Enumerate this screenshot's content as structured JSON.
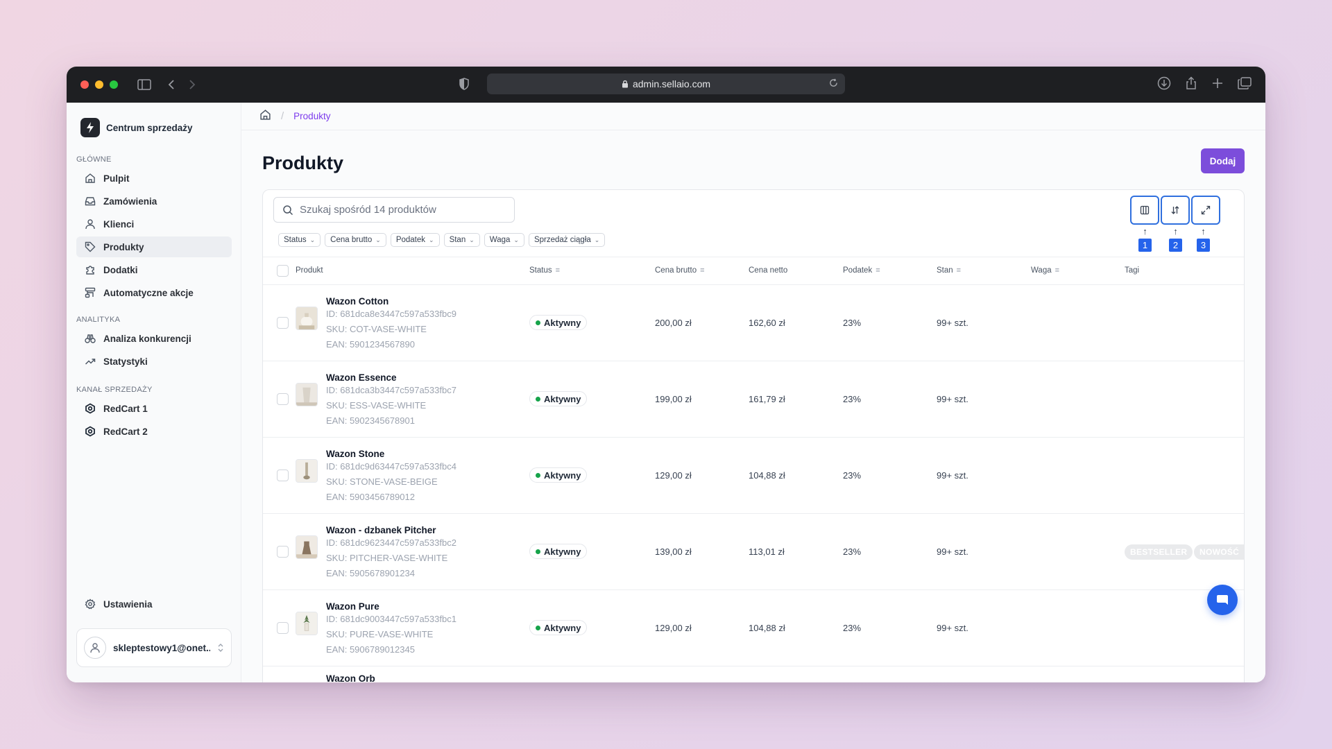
{
  "browser": {
    "url": "admin.sellaio.com",
    "traffic_colors": [
      "#ff5f57",
      "#febc2e",
      "#28c840"
    ]
  },
  "sidebar": {
    "brand": "Centrum sprzedaży",
    "sections": [
      {
        "label": "GŁÓWNE",
        "items": [
          {
            "label": "Pulpit",
            "icon": "home-icon"
          },
          {
            "label": "Zamówienia",
            "icon": "inbox-icon"
          },
          {
            "label": "Klienci",
            "icon": "user-icon"
          },
          {
            "label": "Produkty",
            "icon": "tag-icon",
            "active": true
          },
          {
            "label": "Dodatki",
            "icon": "puzzle-icon"
          },
          {
            "label": "Automatyczne akcje",
            "icon": "workflow-icon"
          }
        ]
      },
      {
        "label": "ANALITYKA",
        "items": [
          {
            "label": "Analiza konkurencji",
            "icon": "binoculars-icon"
          },
          {
            "label": "Statystyki",
            "icon": "trending-up-icon"
          }
        ]
      },
      {
        "label": "KANAŁ SPRZEDAŻY",
        "items": [
          {
            "label": "RedCart 1",
            "icon": "redcart-icon"
          },
          {
            "label": "RedCart 2",
            "icon": "redcart-icon"
          }
        ]
      }
    ],
    "settings_label": "Ustawienia",
    "user_email": "skleptestowy1@onet..."
  },
  "breadcrumb": {
    "current": "Produkty"
  },
  "page": {
    "title": "Produkty",
    "add_label": "Dodaj",
    "accent": "#7c4ddb"
  },
  "toolbar": {
    "search_placeholder": "Szukaj spośród 14 produktów",
    "filters": [
      "Status",
      "Cena brutto",
      "Podatek",
      "Stan",
      "Waga",
      "Sprzedaż ciągła"
    ],
    "annotations": [
      "1",
      "2",
      "3"
    ]
  },
  "table": {
    "headers": {
      "product": "Produkt",
      "status": "Status",
      "gross": "Cena brutto",
      "net": "Cena netto",
      "tax": "Podatek",
      "stock": "Stan",
      "weight": "Waga",
      "tags": "Tagi"
    },
    "rows": [
      {
        "name": "Wazon Cotton",
        "id": "ID: 681dca8e3447c597a533fbc9",
        "sku": "SKU: COT-VASE-WHITE",
        "ean": "EAN: 5901234567890",
        "status": "Aktywny",
        "gross": "200,00 zł",
        "net": "162,60 zł",
        "tax": "23%",
        "stock": "99+ szt.",
        "tags": []
      },
      {
        "name": "Wazon Essence",
        "id": "ID: 681dca3b3447c597a533fbc7",
        "sku": "SKU: ESS-VASE-WHITE",
        "ean": "EAN: 5902345678901",
        "status": "Aktywny",
        "gross": "199,00 zł",
        "net": "161,79 zł",
        "tax": "23%",
        "stock": "99+ szt.",
        "tags": []
      },
      {
        "name": "Wazon Stone",
        "id": "ID: 681dc9d63447c597a533fbc4",
        "sku": "SKU: STONE-VASE-BEIGE",
        "ean": "EAN: 5903456789012",
        "status": "Aktywny",
        "gross": "129,00 zł",
        "net": "104,88 zł",
        "tax": "23%",
        "stock": "99+ szt.",
        "tags": []
      },
      {
        "name": "Wazon - dzbanek Pitcher",
        "id": "ID: 681dc9623447c597a533fbc2",
        "sku": "SKU: PITCHER-VASE-WHITE",
        "ean": "EAN: 5905678901234",
        "status": "Aktywny",
        "gross": "139,00 zł",
        "net": "113,01 zł",
        "tax": "23%",
        "stock": "99+ szt.",
        "tags": [
          "BESTSELLER",
          "NOWOŚĆ"
        ]
      },
      {
        "name": "Wazon Pure",
        "id": "ID: 681dc9003447c597a533fbc1",
        "sku": "SKU: PURE-VASE-WHITE",
        "ean": "EAN: 5906789012345",
        "status": "Aktywny",
        "gross": "129,00 zł",
        "net": "104,88 zł",
        "tax": "23%",
        "stock": "99+ szt.",
        "tags": []
      },
      {
        "name": "Wazon Orb",
        "id": "",
        "sku": "",
        "ean": "",
        "status": "",
        "gross": "",
        "net": "",
        "tax": "",
        "stock": "",
        "tags": []
      }
    ]
  }
}
